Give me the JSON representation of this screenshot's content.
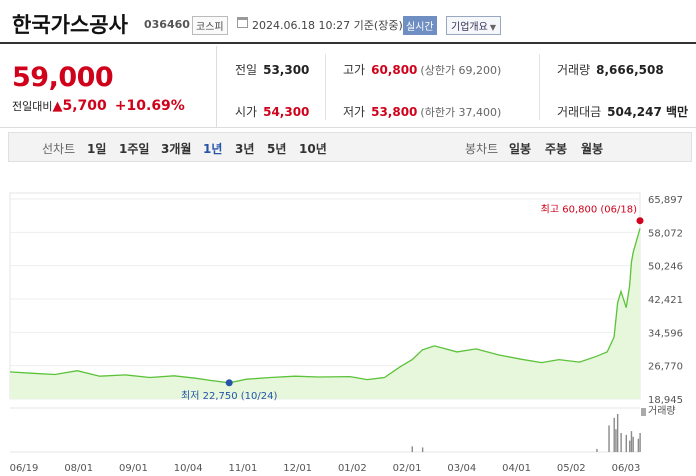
{
  "header": {
    "stock_name": "한국가스공사",
    "stock_code": "036460",
    "market_badge": "코스피",
    "timestamp": "2024.06.18 10:27 기준(장중)",
    "realtime_label": "실시간",
    "corp_overview_label": "기업개요",
    "caret": "▼"
  },
  "price": {
    "current": "59,000",
    "prev_close_label": "전일대비",
    "change_arrow": "▲",
    "change_value": "5,700",
    "change_percent": "+10.69%"
  },
  "stats": {
    "prev_label": "전일",
    "prev_value": "53,300",
    "high_label": "고가",
    "high_value": "60,800",
    "upper_limit": "(상한가 69,200)",
    "volume_label": "거래량",
    "volume_value": "8,666,508",
    "open_label": "시가",
    "open_value": "54,300",
    "low_label": "저가",
    "low_value": "53,800",
    "lower_limit": "(하한가 37,400)",
    "amount_label": "거래대금",
    "amount_value": "504,247 백만"
  },
  "tabs": {
    "line_label": "선차트",
    "periods": [
      "1일",
      "1주일",
      "3개월",
      "1년",
      "3년",
      "5년",
      "10년"
    ],
    "selected_period": "1년",
    "candle_label": "봉차트",
    "candles": [
      "일봉",
      "주봉",
      "월봉"
    ]
  },
  "colors": {
    "up_red": "#d0021b",
    "line_green": "#5cc23a",
    "area_green": "#e6f7dc",
    "low_blue": "#2553a8",
    "selected_tab": "#2553a8"
  },
  "chart_data": {
    "type": "area",
    "title": "",
    "xlabel": "",
    "ylabel": "",
    "y_ticks": [
      "65,897",
      "58,072",
      "50,246",
      "42,421",
      "34,596",
      "26,770",
      "18,945"
    ],
    "y_tick_values": [
      65897,
      58072,
      50246,
      42421,
      34596,
      26770,
      18945
    ],
    "ylim": [
      18945,
      65897
    ],
    "x_ticks": [
      "06/19",
      "08/01",
      "09/01",
      "10/04",
      "11/01",
      "12/01",
      "01/02",
      "02/01",
      "03/04",
      "04/01",
      "05/02",
      "06/03"
    ],
    "x_range": [
      "2023-06-19",
      "2024-06-18"
    ],
    "high_annotation": "최고 60,800 (06/18)",
    "low_annotation": "최저 22,750 (10/24)",
    "high_point": {
      "date": "2024-06-18",
      "value": 60800
    },
    "low_point": {
      "date": "2023-10-24",
      "value": 22750
    },
    "volume_label": "거래량",
    "series": [
      {
        "points": [
          [
            "2023-06-19",
            25300
          ],
          [
            "2023-07-01",
            25000
          ],
          [
            "2023-07-15",
            24700
          ],
          [
            "2023-07-28",
            25600
          ],
          [
            "2023-08-10",
            24300
          ],
          [
            "2023-08-25",
            24600
          ],
          [
            "2023-09-08",
            24000
          ],
          [
            "2023-09-22",
            24400
          ],
          [
            "2023-10-05",
            23800
          ],
          [
            "2023-10-13",
            23300
          ],
          [
            "2023-10-24",
            22750
          ],
          [
            "2023-11-03",
            23600
          ],
          [
            "2023-11-17",
            24000
          ],
          [
            "2023-12-01",
            24300
          ],
          [
            "2023-12-15",
            24100
          ],
          [
            "2024-01-02",
            24200
          ],
          [
            "2024-01-12",
            23500
          ],
          [
            "2024-01-22",
            24000
          ],
          [
            "2024-01-31",
            26500
          ],
          [
            "2024-02-07",
            28200
          ],
          [
            "2024-02-13",
            30500
          ],
          [
            "2024-02-20",
            31400
          ],
          [
            "2024-03-04",
            30000
          ],
          [
            "2024-03-15",
            30700
          ],
          [
            "2024-03-28",
            29300
          ],
          [
            "2024-04-10",
            28300
          ],
          [
            "2024-04-22",
            27500
          ],
          [
            "2024-05-02",
            28200
          ],
          [
            "2024-05-14",
            27600
          ],
          [
            "2024-05-24",
            29000
          ],
          [
            "2024-05-30",
            30000
          ],
          [
            "2024-06-03",
            33500
          ],
          [
            "2024-06-05",
            41500
          ],
          [
            "2024-06-07",
            44200
          ],
          [
            "2024-06-10",
            40400
          ],
          [
            "2024-06-12",
            45500
          ],
          [
            "2024-06-13",
            51000
          ],
          [
            "2024-06-14",
            53300
          ],
          [
            "2024-06-18",
            59000
          ]
        ]
      }
    ],
    "volume_points": [
      [
        "2024-02-07",
        0.15
      ],
      [
        "2024-02-13",
        0.12
      ],
      [
        "2024-05-24",
        0.08
      ],
      [
        "2024-05-31",
        0.7
      ],
      [
        "2024-06-03",
        0.9
      ],
      [
        "2024-06-04",
        0.6
      ],
      [
        "2024-06-05",
        1.0
      ],
      [
        "2024-06-07",
        0.5
      ],
      [
        "2024-06-10",
        0.45
      ],
      [
        "2024-06-12",
        0.3
      ],
      [
        "2024-06-13",
        0.55
      ],
      [
        "2024-06-14",
        0.4
      ],
      [
        "2024-06-17",
        0.35
      ],
      [
        "2024-06-18",
        0.5
      ]
    ]
  }
}
